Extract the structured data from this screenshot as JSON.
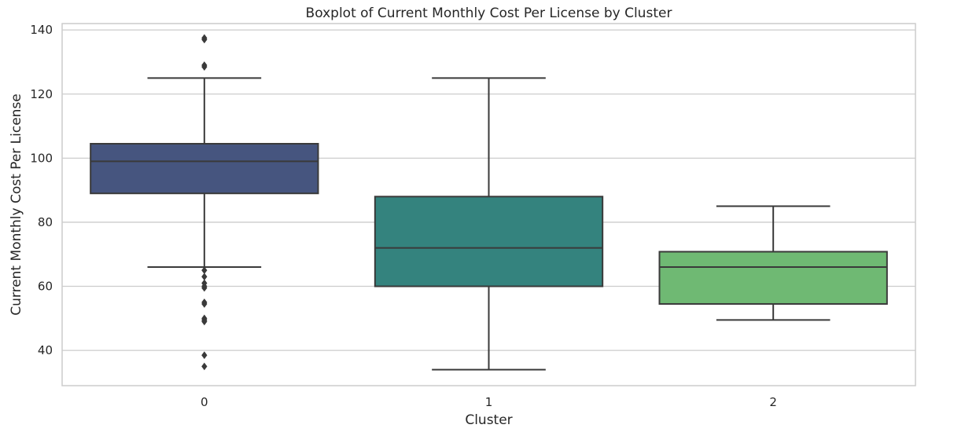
{
  "chart_data": {
    "type": "box",
    "title": "Boxplot of Current Monthly Cost Per License by Cluster",
    "xlabel": "Cluster",
    "ylabel": "Current Monthly Cost Per License",
    "categories": [
      "0",
      "1",
      "2"
    ],
    "ylim": [
      29,
      142
    ],
    "yticks": [
      40,
      60,
      80,
      100,
      120,
      140
    ],
    "grid": true,
    "boxes": [
      {
        "category": "0",
        "whisker_low": 66,
        "q1": 89,
        "median": 99,
        "q3": 104.5,
        "whisker_high": 125,
        "outliers": [
          137.5,
          137,
          129,
          128.5,
          65,
          63,
          61,
          60,
          59.5,
          55,
          54.5,
          50,
          49.5,
          49,
          38.5,
          35
        ],
        "color": "#46557f"
      },
      {
        "category": "1",
        "whisker_low": 34,
        "q1": 60,
        "median": 72,
        "q3": 88,
        "whisker_high": 125,
        "outliers": [],
        "color": "#34837e"
      },
      {
        "category": "2",
        "whisker_low": 49.5,
        "q1": 54.5,
        "median": 66,
        "q3": 70.8,
        "whisker_high": 85,
        "outliers": [],
        "color": "#6fb973"
      }
    ]
  }
}
